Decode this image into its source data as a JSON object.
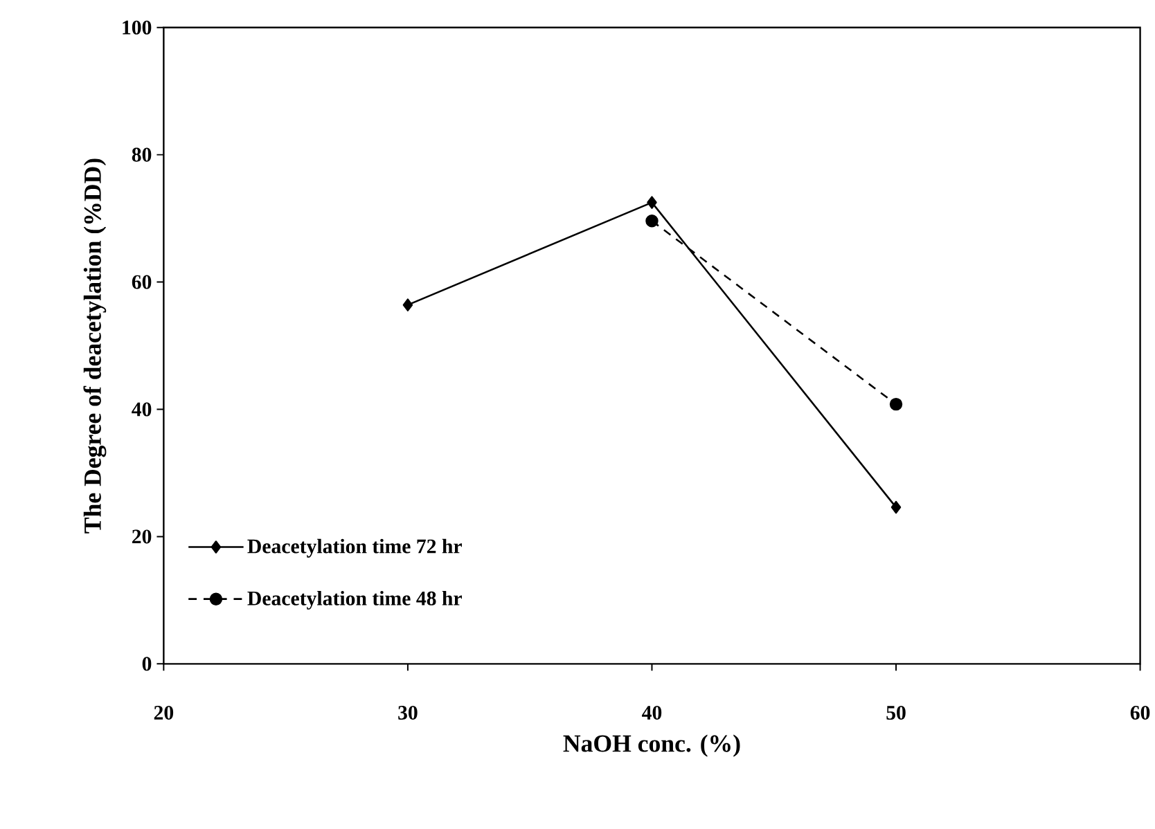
{
  "chart_data": {
    "type": "line",
    "xlabel": "NaOH conc. (%)",
    "ylabel": "The Degree of deacetylation (%DD)",
    "x": [
      30,
      40,
      50
    ],
    "series": [
      {
        "name": "Deacetylation time 72 hr",
        "color": "#000000",
        "marker": "diamond",
        "line_style": "solid",
        "values": [
          56.4,
          72.5,
          24.6
        ]
      },
      {
        "name": "Deacetylation time 48 hr",
        "color": "#000000",
        "marker": "circle",
        "line_style": "dashed",
        "values": [
          null,
          69.6,
          40.8
        ]
      }
    ],
    "xlim": [
      20,
      60
    ],
    "xticks": [
      20,
      30,
      40,
      50,
      60
    ],
    "ylim": [
      0,
      100
    ],
    "yticks": [
      0,
      20,
      40,
      60,
      80,
      100
    ],
    "grid": false,
    "legend": "bottom left"
  }
}
